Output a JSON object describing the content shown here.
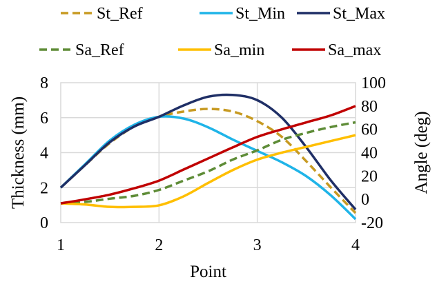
{
  "chart_data": {
    "type": "line",
    "x": [
      1,
      1.25,
      1.5,
      1.75,
      2,
      2.25,
      2.5,
      2.75,
      3,
      3.25,
      3.5,
      3.75,
      4
    ],
    "xlim": [
      1,
      4
    ],
    "x_ticks": [
      "1",
      "2",
      "3",
      "4"
    ],
    "xlabel": "Point",
    "ylabel_left": "Thickness (mm)",
    "ylabel_right": "Angle (deg)",
    "ylim_left": [
      0,
      8
    ],
    "ylim_right": [
      -20,
      100
    ],
    "y_ticks_left": [
      "0",
      "2",
      "4",
      "6",
      "8"
    ],
    "y_ticks_right": [
      "-20",
      "0",
      "20",
      "40",
      "60",
      "80",
      "100"
    ],
    "grid": true,
    "legend_position": "top",
    "series": [
      {
        "name": "St_Ref",
        "axis": "left",
        "color": "#c79a22",
        "dash": "dashed",
        "values": [
          2.0,
          3.3,
          4.55,
          5.5,
          6.05,
          6.35,
          6.5,
          6.35,
          5.8,
          4.9,
          3.5,
          2.0,
          0.55
        ]
      },
      {
        "name": "St_Min",
        "axis": "left",
        "color": "#1fb4e8",
        "dash": "solid",
        "values": [
          2.0,
          3.35,
          4.7,
          5.6,
          6.05,
          5.95,
          5.45,
          4.75,
          4.1,
          3.45,
          2.65,
          1.55,
          0.2
        ]
      },
      {
        "name": "St_Max",
        "axis": "left",
        "color": "#1f2f66",
        "dash": "solid",
        "values": [
          2.0,
          3.3,
          4.6,
          5.5,
          6.05,
          6.7,
          7.2,
          7.3,
          7.0,
          6.0,
          4.3,
          2.4,
          0.75
        ]
      },
      {
        "name": "Sa_Ref",
        "axis": "right",
        "color": "#5e8c37",
        "dash": "dashed",
        "values": [
          -3.5,
          -2.2,
          0.5,
          3.0,
          8.0,
          16.0,
          24.0,
          34.0,
          42.0,
          51.0,
          57.0,
          62.0,
          66.0
        ]
      },
      {
        "name": "Sa_min",
        "axis": "right",
        "color": "#ffbf00",
        "dash": "solid",
        "values": [
          -3.5,
          -4.5,
          -6.5,
          -6.5,
          -5.2,
          2.5,
          14.0,
          25.0,
          34.0,
          40.0,
          45.0,
          50.0,
          55.0
        ]
      },
      {
        "name": "Sa_max",
        "axis": "right",
        "color": "#c00000",
        "dash": "solid",
        "values": [
          -3.5,
          0.0,
          4.0,
          9.5,
          16.0,
          25.5,
          35.0,
          44.5,
          53.5,
          60.0,
          66.0,
          72.0,
          80.0
        ]
      }
    ]
  }
}
